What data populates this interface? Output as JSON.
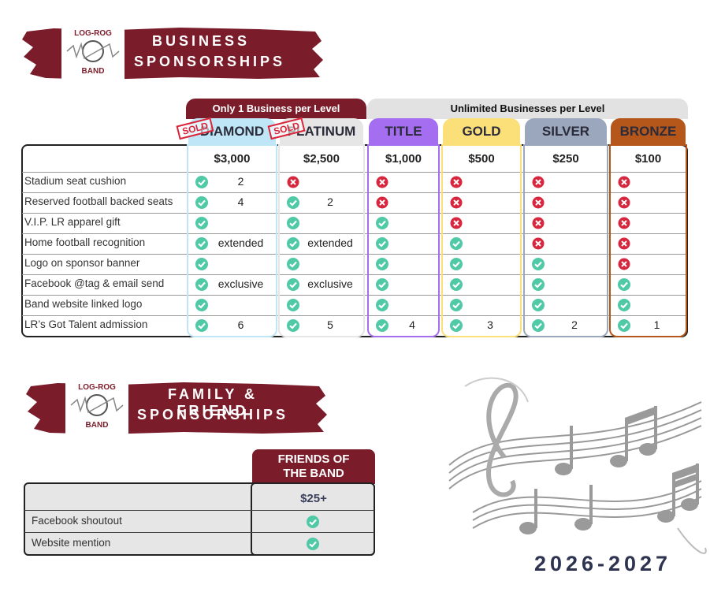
{
  "business": {
    "logo_top": "LOG-ROG",
    "logo_bottom": "BAND",
    "title_line1": "BUSINESS",
    "title_line2": "SPONSORSHIPS",
    "group_headers": [
      "Only 1 Business per Level",
      "Unlimited Businesses per Level"
    ],
    "levels": [
      {
        "name": "DIAMOND",
        "price": "$3,000",
        "sold": "SOLD",
        "color": "#bfe6f7"
      },
      {
        "name": "PLATINUM",
        "price": "$2,500",
        "sold": "SOLD",
        "color": "#e6e6e6"
      },
      {
        "name": "TITLE",
        "price": "$1,000",
        "color": "#a56ef0"
      },
      {
        "name": "GOLD",
        "price": "$500",
        "color": "#fbe07a"
      },
      {
        "name": "SILVER",
        "price": "$250",
        "color": "#9aa7bd"
      },
      {
        "name": "BRONZE",
        "price": "$100",
        "color": "#b5561a"
      }
    ],
    "rows": [
      {
        "benefit": "Stadium seat cushion",
        "cells": [
          {
            "included": true,
            "note": "2"
          },
          {
            "included": false
          },
          {
            "included": false
          },
          {
            "included": false
          },
          {
            "included": false
          },
          {
            "included": false
          }
        ]
      },
      {
        "benefit": "Reserved football backed seats",
        "cells": [
          {
            "included": true,
            "note": "4"
          },
          {
            "included": true,
            "note": "2"
          },
          {
            "included": false
          },
          {
            "included": false
          },
          {
            "included": false
          },
          {
            "included": false
          }
        ]
      },
      {
        "benefit": "V.I.P. LR apparel gift",
        "cells": [
          {
            "included": true
          },
          {
            "included": true
          },
          {
            "included": true
          },
          {
            "included": false
          },
          {
            "included": false
          },
          {
            "included": false
          }
        ]
      },
      {
        "benefit": "Home football recognition",
        "cells": [
          {
            "included": true,
            "note": "extended"
          },
          {
            "included": true,
            "note": "extended"
          },
          {
            "included": true
          },
          {
            "included": true
          },
          {
            "included": false
          },
          {
            "included": false
          }
        ]
      },
      {
        "benefit": "Logo on sponsor banner",
        "cells": [
          {
            "included": true
          },
          {
            "included": true
          },
          {
            "included": true
          },
          {
            "included": true
          },
          {
            "included": true
          },
          {
            "included": false
          }
        ]
      },
      {
        "benefit": "Facebook @tag & email send",
        "cells": [
          {
            "included": true,
            "note": "exclusive"
          },
          {
            "included": true,
            "note": "exclusive"
          },
          {
            "included": true
          },
          {
            "included": true
          },
          {
            "included": true
          },
          {
            "included": true
          }
        ]
      },
      {
        "benefit": "Band website linked logo",
        "cells": [
          {
            "included": true
          },
          {
            "included": true
          },
          {
            "included": true
          },
          {
            "included": true
          },
          {
            "included": true
          },
          {
            "included": true
          }
        ]
      },
      {
        "benefit": "LR’s Got Talent admission",
        "cells": [
          {
            "included": true,
            "note": "6"
          },
          {
            "included": true,
            "note": "5"
          },
          {
            "included": true,
            "note": "4"
          },
          {
            "included": true,
            "note": "3"
          },
          {
            "included": true,
            "note": "2"
          },
          {
            "included": true,
            "note": "1"
          }
        ]
      }
    ]
  },
  "family": {
    "logo_top": "LOG-ROG",
    "logo_bottom": "BAND",
    "title_line1": "FAMILY & FRIEND",
    "title_line2": "SPONSORSHIPS",
    "level": {
      "name": "FRIENDS OF THE BAND",
      "price": "$25+"
    },
    "rows": [
      {
        "benefit": "Facebook shoutout",
        "included": true
      },
      {
        "benefit": "Website mention",
        "included": true
      }
    ]
  },
  "year": "2026-2027"
}
